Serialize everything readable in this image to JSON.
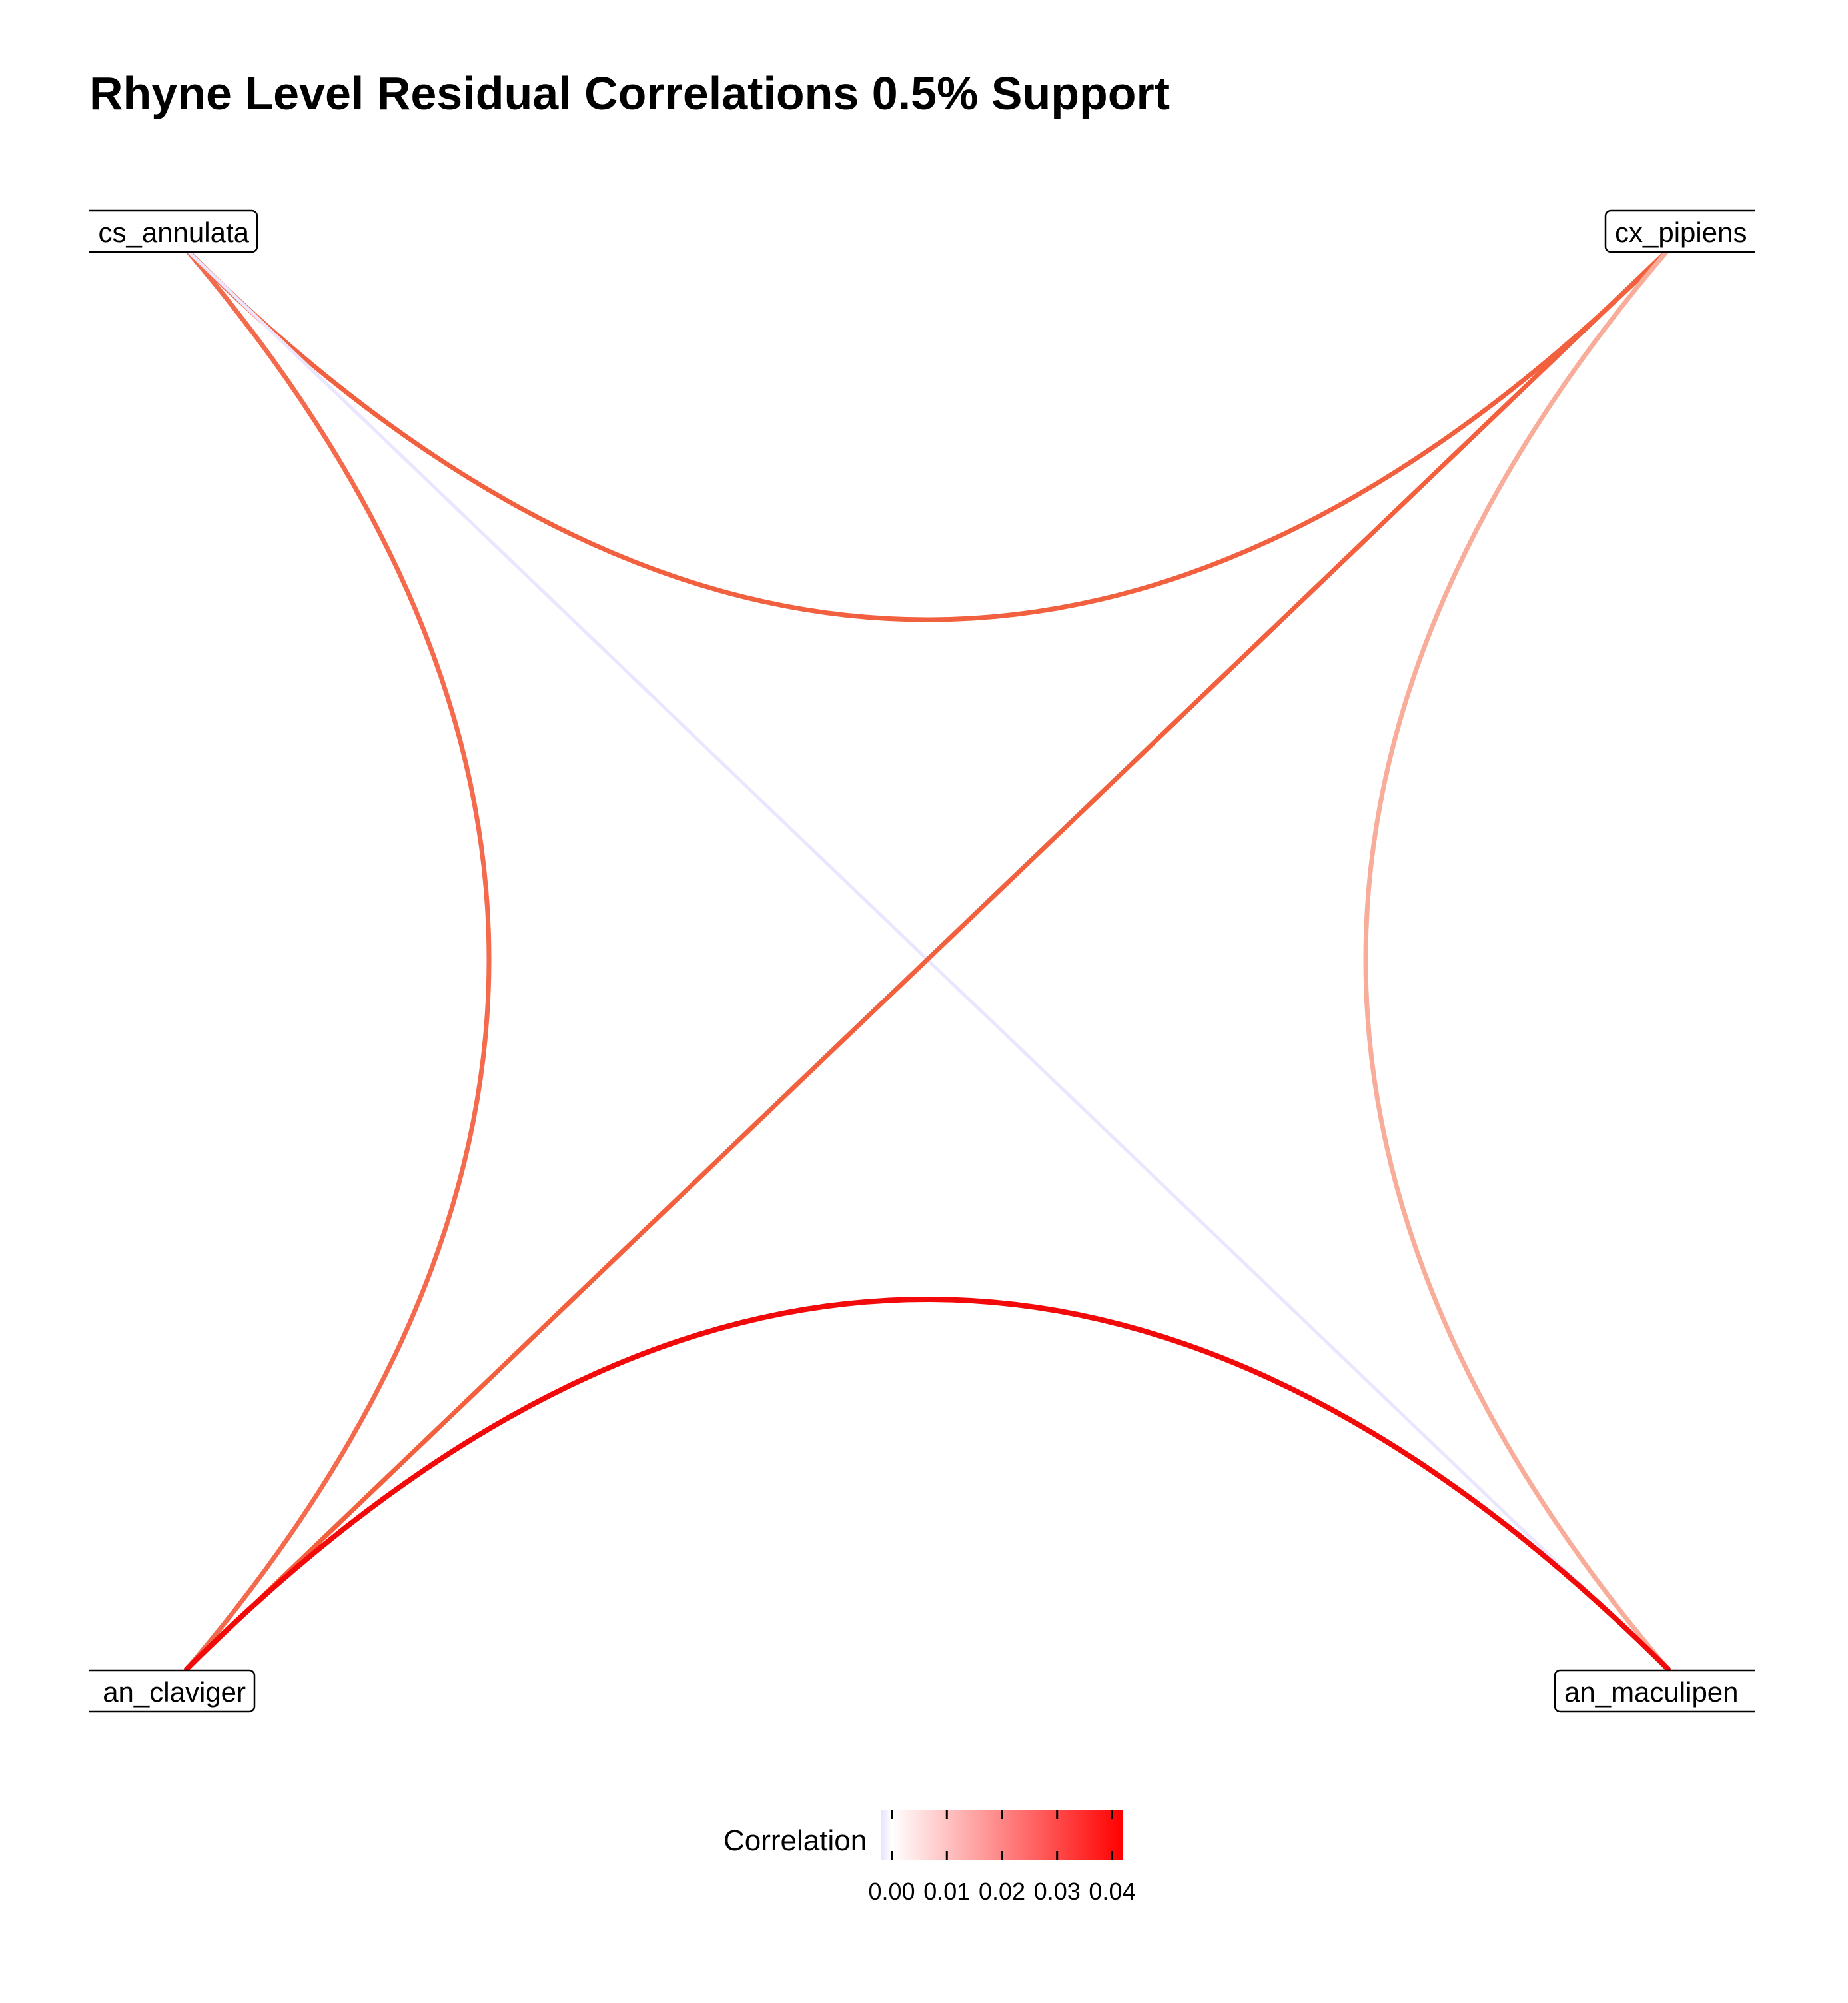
{
  "title": "Rhyne Level Residual Correlations 0.5% Support",
  "nodes": [
    {
      "id": "cs_annulata",
      "label": "cs_annulata",
      "corner": "top-left"
    },
    {
      "id": "cx_pipiens",
      "label": "cx_pipiens",
      "corner": "top-right"
    },
    {
      "id": "an_claviger",
      "label": "an_claviger",
      "corner": "bottom-left"
    },
    {
      "id": "an_maculipen",
      "label": "an_maculipen",
      "corner": "bottom-right"
    }
  ],
  "edges": [
    {
      "from": "cs_annulata",
      "to": "cx_pipiens",
      "correlation": 0.03,
      "color": "#f2613f"
    },
    {
      "from": "cs_annulata",
      "to": "an_claviger",
      "correlation": 0.028,
      "color": "#f46a4c"
    },
    {
      "from": "cs_annulata",
      "to": "an_maculipen",
      "correlation": 0.0,
      "color": "#ebe6ff"
    },
    {
      "from": "cx_pipiens",
      "to": "an_claviger",
      "correlation": 0.031,
      "color": "#f2603e"
    },
    {
      "from": "cx_pipiens",
      "to": "an_maculipen",
      "correlation": 0.017,
      "color": "#f8ad9a"
    },
    {
      "from": "an_claviger",
      "to": "an_maculipen",
      "correlation": 0.042,
      "color": "#f20a0a"
    }
  ],
  "legend": {
    "title": "Correlation",
    "ticks": [
      "0.00",
      "0.01",
      "0.02",
      "0.03",
      "0.04"
    ],
    "range": [
      -0.002,
      0.042
    ],
    "colors": [
      "#e6e0ff",
      "#ffffff",
      "#ff0000"
    ]
  }
}
